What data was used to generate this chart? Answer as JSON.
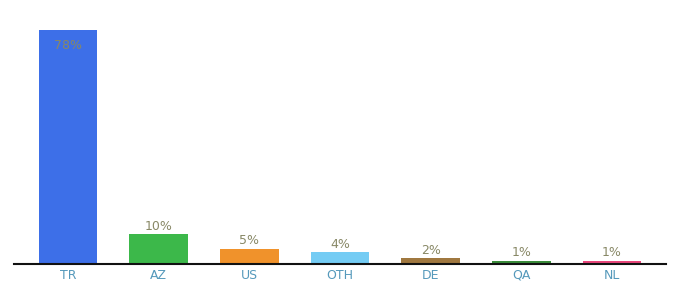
{
  "categories": [
    "TR",
    "AZ",
    "US",
    "OTH",
    "DE",
    "QA",
    "NL"
  ],
  "values": [
    78,
    10,
    5,
    4,
    2,
    1,
    1
  ],
  "bar_colors": [
    "#3d6fe8",
    "#3cb84a",
    "#f0922b",
    "#74ccf4",
    "#a07840",
    "#3a8c3a",
    "#e8457a"
  ],
  "labels": [
    "78%",
    "10%",
    "5%",
    "4%",
    "2%",
    "1%",
    "1%"
  ],
  "label_color": "#888866",
  "background_color": "#ffffff",
  "ylim": [
    0,
    85
  ],
  "bar_width": 0.65,
  "figsize": [
    6.8,
    3.0
  ],
  "dpi": 100,
  "tick_color": "#5599bb",
  "spine_color": "#111111"
}
